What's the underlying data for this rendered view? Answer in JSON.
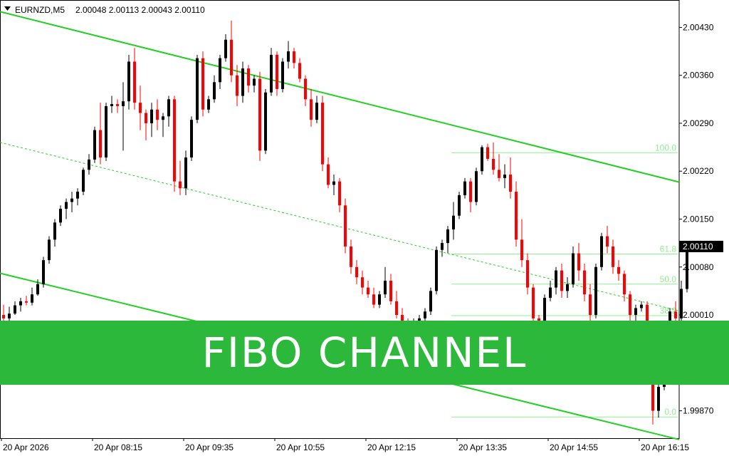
{
  "header": {
    "symbol": "EURNZD,M5",
    "ohlc": "2.00048 2.00113 2.00043 2.00110"
  },
  "banner": {
    "title": "FIBO CHANNEL"
  },
  "colors": {
    "bull": "#000000",
    "bear": "#ff0000",
    "channel": "#22d022",
    "fibo": "#90ee90",
    "banner": "#2cb83a"
  },
  "chart_data": {
    "type": "candlestick",
    "symbol": "EURNZD",
    "timeframe": "M5",
    "ylim": [
      1.9983,
      2.0047
    ],
    "y_ticks": [
      "2.00430",
      "2.00360",
      "2.00290",
      "2.00220",
      "2.00150",
      "2.00080",
      "2.00010",
      "1.99870"
    ],
    "current_price": "2.00110",
    "x_ticks": [
      "20 Apr 2026",
      "20 Apr 08:15",
      "20 Apr 09:35",
      "20 Apr 10:55",
      "20 Apr 12:15",
      "20 Apr 13:35",
      "20 Apr 14:55",
      "20 Apr 16:15"
    ],
    "fibo_levels": [
      {
        "label": "100.0",
        "price": 2.00247
      },
      {
        "label": "61.8",
        "price": 2.00099
      },
      {
        "label": "50.0",
        "price": 2.00055
      },
      {
        "label": "38.2",
        "price": 2.00009
      },
      {
        "label": "0.0",
        "price": 1.99861
      }
    ],
    "channel": {
      "upper": [
        [
          0,
          2.00453
        ],
        [
          118,
          2.00204
        ]
      ],
      "middle": [
        [
          0,
          2.00262
        ],
        [
          118,
          2.00016
        ]
      ],
      "lower": [
        [
          0,
          2.00071
        ],
        [
          118,
          1.99828
        ]
      ]
    },
    "candles": [
      [
        2.0001,
        2.00025,
        1.99995,
        2.00005
      ],
      [
        2.00005,
        2.00022,
        2.0,
        2.00012
      ],
      [
        2.00012,
        2.0003,
        2.0001,
        2.00024
      ],
      [
        2.00024,
        2.00035,
        2.00015,
        2.0003
      ],
      [
        2.0003,
        2.00038,
        2.00024,
        2.00028
      ],
      [
        2.00028,
        2.0005,
        2.00024,
        2.0004
      ],
      [
        2.0004,
        2.00062,
        2.00038,
        2.00055
      ],
      [
        2.00055,
        2.00095,
        2.0005,
        2.0009
      ],
      [
        2.0009,
        2.00125,
        2.00085,
        2.0012
      ],
      [
        2.0012,
        2.0015,
        2.0011,
        2.00145
      ],
      [
        2.00145,
        2.0017,
        2.0014,
        2.00165
      ],
      [
        2.00165,
        2.0018,
        2.0015,
        2.00175
      ],
      [
        2.00175,
        2.0019,
        2.0016,
        2.0018
      ],
      [
        2.0018,
        2.00195,
        2.0017,
        2.0019
      ],
      [
        2.0019,
        2.00225,
        2.00185,
        2.00222
      ],
      [
        2.00222,
        2.00245,
        2.00215,
        2.00237
      ],
      [
        2.00237,
        2.00285,
        2.00232,
        2.0028
      ],
      [
        2.0028,
        2.0032,
        2.0023,
        2.0024
      ],
      [
        2.0024,
        2.0032,
        2.00235,
        2.00315
      ],
      [
        2.00315,
        2.0033,
        2.00305,
        2.00318
      ],
      [
        2.00318,
        2.00325,
        2.00305,
        2.00315
      ],
      [
        2.00315,
        2.0035,
        2.0025,
        2.00322
      ],
      [
        2.00322,
        2.0039,
        2.0031,
        2.0038
      ],
      [
        2.0038,
        2.004,
        2.0031,
        2.0032
      ],
      [
        2.0032,
        2.00345,
        2.0028,
        2.00305
      ],
      [
        2.00305,
        2.0031,
        2.00265,
        2.0029
      ],
      [
        2.0029,
        2.0032,
        2.0027,
        2.0031
      ],
      [
        2.0031,
        2.00325,
        2.0028,
        2.00295
      ],
      [
        2.00295,
        2.00305,
        2.0027,
        2.003
      ],
      [
        2.003,
        2.0033,
        2.00285,
        2.00325
      ],
      [
        2.00325,
        2.0033,
        2.0019,
        2.00205
      ],
      [
        2.00205,
        2.00235,
        2.00185,
        2.00195
      ],
      [
        2.00195,
        2.0025,
        2.00185,
        2.0024
      ],
      [
        2.0024,
        2.003,
        2.00235,
        2.00295
      ],
      [
        2.00295,
        2.0039,
        2.0029,
        2.00385
      ],
      [
        2.00385,
        2.00395,
        2.003,
        2.0031
      ],
      [
        2.0031,
        2.0033,
        2.00305,
        2.00325
      ],
      [
        2.00325,
        2.0036,
        2.0032,
        2.0035
      ],
      [
        2.0035,
        2.0039,
        2.0034,
        2.00385
      ],
      [
        2.00385,
        2.0042,
        2.0038,
        2.00412
      ],
      [
        2.00412,
        2.0044,
        2.0035,
        2.0036
      ],
      [
        2.0036,
        2.00375,
        2.00315,
        2.0033
      ],
      [
        2.0033,
        2.0038,
        2.0032,
        2.0037
      ],
      [
        2.0037,
        2.00375,
        2.00335,
        2.00345
      ],
      [
        2.00345,
        2.0036,
        2.00335,
        2.00355
      ],
      [
        2.00355,
        2.00365,
        2.00235,
        2.0025
      ],
      [
        2.0025,
        2.0034,
        2.00245,
        2.00335
      ],
      [
        2.00335,
        2.004,
        2.0033,
        2.0039
      ],
      [
        2.0039,
        2.00395,
        2.0033,
        2.0034
      ],
      [
        2.0034,
        2.00385,
        2.00335,
        2.0038
      ],
      [
        2.0038,
        2.0041,
        2.0037,
        2.00395
      ],
      [
        2.00395,
        2.004,
        2.0037,
        2.00378
      ],
      [
        2.00378,
        2.00385,
        2.0035,
        2.00355
      ],
      [
        2.00355,
        2.0036,
        2.00315,
        2.00325
      ],
      [
        2.00325,
        2.0034,
        2.00285,
        2.00295
      ],
      [
        2.00295,
        2.0033,
        2.0029,
        2.0032
      ],
      [
        2.0032,
        2.0033,
        2.0022,
        2.0023
      ],
      [
        2.0023,
        2.0024,
        2.00195,
        2.002
      ],
      [
        2.002,
        2.00215,
        2.00185,
        2.00205
      ],
      [
        2.00205,
        2.0021,
        2.0016,
        2.0017
      ],
      [
        2.0017,
        2.0018,
        2.001,
        2.0011
      ],
      [
        2.0011,
        2.0012,
        2.0007,
        2.0008
      ],
      [
        2.0008,
        2.0009,
        2.00055,
        2.00065
      ],
      [
        2.00065,
        2.00075,
        2.0004,
        2.0005
      ],
      [
        2.0005,
        2.0006,
        2.00035,
        2.0004
      ],
      [
        2.0004,
        2.0005,
        2.0002,
        2.00025
      ],
      [
        2.00025,
        2.00045,
        2.0002,
        2.0004
      ],
      [
        2.0004,
        2.0008,
        2.00035,
        2.0006
      ],
      [
        2.0006,
        2.0007,
        2.00025,
        2.0003
      ],
      [
        2.0003,
        2.00045,
        2.00005,
        2.0001
      ],
      [
        2.0001,
        2.0002,
        1.9999,
        1.99995
      ],
      [
        1.99995,
        2.00005,
        1.99985,
        1.9999
      ],
      [
        1.9999,
        2.00005,
        1.99985,
        2.0
      ],
      [
        2.0,
        2.0001,
        1.9999,
        2.00005
      ],
      [
        2.00005,
        2.0002,
        2.0,
        2.00015
      ],
      [
        2.00015,
        2.0005,
        2.0001,
        2.00045
      ],
      [
        2.00045,
        2.0011,
        2.0004,
        2.00105
      ],
      [
        2.00105,
        2.0012,
        2.00095,
        2.00115
      ],
      [
        2.00115,
        2.0014,
        2.001,
        2.00135
      ],
      [
        2.00135,
        2.00175,
        2.0012,
        2.00155
      ],
      [
        2.00155,
        2.0019,
        2.0015,
        2.00185
      ],
      [
        2.00185,
        2.0021,
        2.0018,
        2.00205
      ],
      [
        2.00205,
        2.0021,
        2.0016,
        2.00175
      ],
      [
        2.00175,
        2.00225,
        2.0017,
        2.0022
      ],
      [
        2.0022,
        2.00258,
        2.00215,
        2.00255
      ],
      [
        2.00255,
        2.0026,
        2.00235,
        2.00238
      ],
      [
        2.00238,
        2.00262,
        2.00215,
        2.00222
      ],
      [
        2.00222,
        2.00245,
        2.00205,
        2.0021
      ],
      [
        2.0021,
        2.0023,
        2.00195,
        2.00215
      ],
      [
        2.00215,
        2.0024,
        2.0018,
        2.0019
      ],
      [
        2.0019,
        2.00205,
        2.0011,
        2.0012
      ],
      [
        2.0012,
        2.0015,
        2.0008,
        2.0009
      ],
      [
        2.0009,
        2.001,
        2.0004,
        2.0005
      ],
      [
        2.0005,
        2.00055,
        1.9999,
        2.00005
      ],
      [
        2.00005,
        2.0001,
        1.9996,
        1.99975
      ],
      [
        1.99975,
        2.0004,
        1.9997,
        2.00035
      ],
      [
        2.00035,
        2.0006,
        2.0003,
        2.0005
      ],
      [
        2.0005,
        2.0008,
        2.0004,
        2.00075
      ],
      [
        2.00075,
        2.00085,
        2.00035,
        2.00045
      ],
      [
        2.00045,
        2.00065,
        2.00035,
        2.00055
      ],
      [
        2.00055,
        2.0011,
        2.0005,
        2.001
      ],
      [
        2.001,
        2.00115,
        2.0006,
        2.00075
      ],
      [
        2.00075,
        2.00085,
        2.0003,
        2.0004
      ],
      [
        2.0004,
        2.00055,
        1.99995,
        2.0001
      ],
      [
        2.0001,
        2.00085,
        2.00005,
        2.0008
      ],
      [
        2.0008,
        2.0013,
        2.00075,
        2.00125
      ],
      [
        2.00125,
        2.0014,
        2.001,
        2.0011
      ],
      [
        2.0011,
        2.0012,
        2.0007,
        2.0008
      ],
      [
        2.0008,
        2.0009,
        2.0006,
        2.0007
      ],
      [
        2.0007,
        2.00075,
        2.0003,
        2.0004
      ],
      [
        2.0004,
        2.00045,
        2.0,
        2.0001
      ],
      [
        2.0001,
        2.00025,
        2.0,
        2.0002
      ],
      [
        2.0002,
        2.0003,
        2.00015,
        2.00025
      ],
      [
        2.00025,
        2.0003,
        1.9995,
        1.9996
      ],
      [
        1.9996,
        1.9997,
        1.9985,
        1.9987
      ],
      [
        1.9987,
        1.9991,
        1.9986,
        1.99905
      ],
      [
        1.99905,
        1.9994,
        1.999,
        1.9993
      ],
      [
        1.9993,
        2.0002,
        1.99925,
        2.00015
      ],
      [
        2.00015,
        2.0003,
        1.9999,
        2.00005
      ],
      [
        2.00005,
        2.0006,
        2.0,
        2.00048
      ],
      [
        2.00048,
        2.00113,
        2.00043,
        2.0011
      ]
    ]
  }
}
